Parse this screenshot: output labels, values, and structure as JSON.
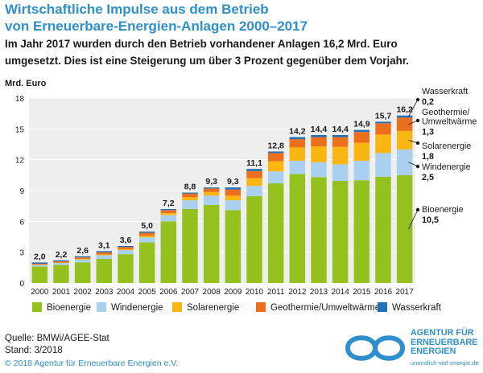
{
  "header": {
    "title_line1": "Wirtschaftliche Impulse aus dem Betrieb",
    "title_line2": "von Erneuerbare-Energien-Anlagen 2000–2017",
    "subtitle_line1": "Im Jahr 2017 wurden durch den Betrieb vorhandener Anlagen 16,2 Mrd. Euro",
    "subtitle_line2": "umgesetzt. Dies ist eine Steigerung um über 3 Prozent gegenüber dem Vorjahr."
  },
  "chart_data": {
    "type": "bar",
    "stacked": true,
    "ylabel": "Mrd. Euro",
    "ylim": [
      0,
      18
    ],
    "yticks": [
      0,
      3,
      6,
      9,
      12,
      15,
      18
    ],
    "grid": true,
    "categories": [
      "2000",
      "2001",
      "2002",
      "2003",
      "2004",
      "2005",
      "2006",
      "2007",
      "2008",
      "2009",
      "2010",
      "2011",
      "2012",
      "2013",
      "2014",
      "2015",
      "2016",
      "2017"
    ],
    "totals_labels": [
      "2,0",
      "2,2",
      "2,6",
      "3,1",
      "3,6",
      "5,0",
      "7,2",
      "8,8",
      "9,3",
      "9,3",
      "11,1",
      "12,8",
      "14,2",
      "14,4",
      "14,4",
      "14,9",
      "15,7",
      "16,2"
    ],
    "series": [
      {
        "name": "Bioenergie",
        "color": "#95c11f",
        "values": [
          1.6,
          1.75,
          2.0,
          2.35,
          2.8,
          3.95,
          6.0,
          7.2,
          7.6,
          7.1,
          8.45,
          9.7,
          10.6,
          10.3,
          9.95,
          10.0,
          10.35,
          10.5
        ]
      },
      {
        "name": "Windenergie",
        "color": "#a9d0ef",
        "values": [
          0.15,
          0.2,
          0.28,
          0.35,
          0.4,
          0.5,
          0.6,
          0.85,
          0.9,
          0.95,
          1.0,
          1.15,
          1.3,
          1.45,
          1.6,
          1.9,
          2.3,
          2.5
        ]
      },
      {
        "name": "Solarenergie",
        "color": "#f9b612",
        "values": [
          0.03,
          0.04,
          0.06,
          0.08,
          0.1,
          0.15,
          0.2,
          0.3,
          0.35,
          0.45,
          0.75,
          1.0,
          1.3,
          1.55,
          1.7,
          1.75,
          1.8,
          1.8
        ]
      },
      {
        "name": "Geothermie/Umweltwärme",
        "color": "#ec6f1d",
        "values": [
          0.1,
          0.12,
          0.15,
          0.2,
          0.2,
          0.28,
          0.3,
          0.35,
          0.35,
          0.6,
          0.7,
          0.8,
          0.8,
          0.9,
          0.95,
          1.05,
          1.1,
          1.3
        ]
      },
      {
        "name": "Wasserkraft",
        "color": "#1f70b5",
        "values": [
          0.12,
          0.09,
          0.11,
          0.12,
          0.1,
          0.12,
          0.1,
          0.1,
          0.1,
          0.2,
          0.2,
          0.15,
          0.2,
          0.2,
          0.2,
          0.2,
          0.15,
          0.2
        ]
      }
    ],
    "annotations_2017": [
      {
        "series": "Wasserkraft",
        "lines": [
          "Wasserkraft"
        ],
        "value": "0,2"
      },
      {
        "series": "Geothermie/Umweltwärme",
        "lines": [
          "Geothermie/",
          "Umweltwärme"
        ],
        "value": "1,3"
      },
      {
        "series": "Solarenergie",
        "lines": [
          "Solarenergie"
        ],
        "value": "1,8"
      },
      {
        "series": "Windenergie",
        "lines": [
          "Windenergie"
        ],
        "value": "2,5"
      },
      {
        "series": "Bioenergie",
        "lines": [
          "Bioenergie"
        ],
        "value": "10,5"
      }
    ]
  },
  "footer": {
    "source": "Quelle: BMWi/AGEE-Stat",
    "stand": "Stand: 3/2018",
    "copyright": "© 2018 Agentur für Erneuerbare Energien e.V.",
    "logo_line1": "AGENTUR FÜR",
    "logo_line2": "ERNEUERBARE",
    "logo_line3": "ENERGIEN",
    "logo_url": "unendlich-viel-energie.de",
    "logo_color": "#2f8fcd"
  }
}
